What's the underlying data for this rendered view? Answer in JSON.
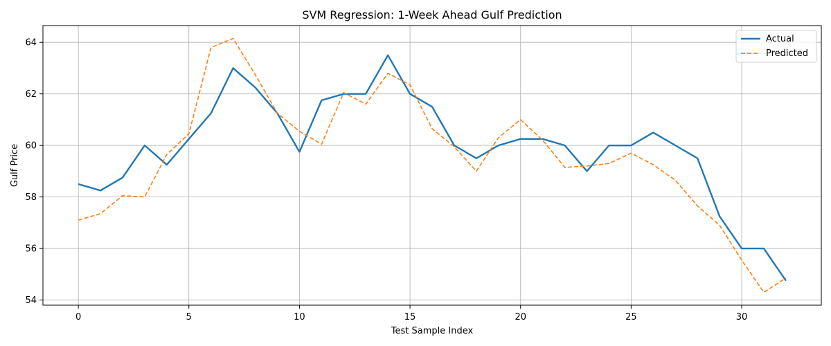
{
  "chart_data": {
    "type": "line",
    "title": "SVM Regression: 1-Week Ahead Gulf Prediction",
    "xlabel": "Test Sample Index",
    "ylabel": "Gulf Price",
    "xlim": [
      -1.6,
      33.6
    ],
    "ylim": [
      53.8,
      64.65
    ],
    "xticks": [
      0,
      5,
      10,
      15,
      20,
      25,
      30
    ],
    "yticks": [
      54,
      56,
      58,
      60,
      62,
      64
    ],
    "grid": true,
    "legend_position": "top-right",
    "x": [
      0,
      1,
      2,
      3,
      4,
      5,
      6,
      7,
      8,
      9,
      10,
      11,
      12,
      13,
      14,
      15,
      16,
      17,
      18,
      19,
      20,
      21,
      22,
      23,
      24,
      25,
      26,
      27,
      28,
      29,
      30,
      31,
      32
    ],
    "series": [
      {
        "name": "Actual",
        "color": "#1f77b4",
        "style": "solid",
        "values": [
          58.5,
          58.25,
          58.75,
          60.0,
          59.25,
          60.25,
          61.25,
          63.0,
          62.25,
          61.25,
          59.75,
          61.75,
          62.0,
          62.0,
          63.5,
          62.0,
          61.5,
          60.0,
          59.5,
          60.0,
          60.25,
          60.25,
          60.0,
          59.0,
          60.0,
          60.0,
          60.5,
          60.0,
          59.5,
          57.25,
          56.0,
          56.0,
          54.75
        ]
      },
      {
        "name": "Predicted",
        "color": "#ff7f0e",
        "style": "dashed",
        "values": [
          57.1,
          57.35,
          58.05,
          58.0,
          59.65,
          60.45,
          63.8,
          64.15,
          62.75,
          61.25,
          60.55,
          60.05,
          62.05,
          61.6,
          62.8,
          62.35,
          60.65,
          59.95,
          59.0,
          60.3,
          61.0,
          60.2,
          59.15,
          59.2,
          59.3,
          59.7,
          59.25,
          58.65,
          57.65,
          56.9,
          55.55,
          54.3,
          54.85
        ]
      }
    ]
  }
}
